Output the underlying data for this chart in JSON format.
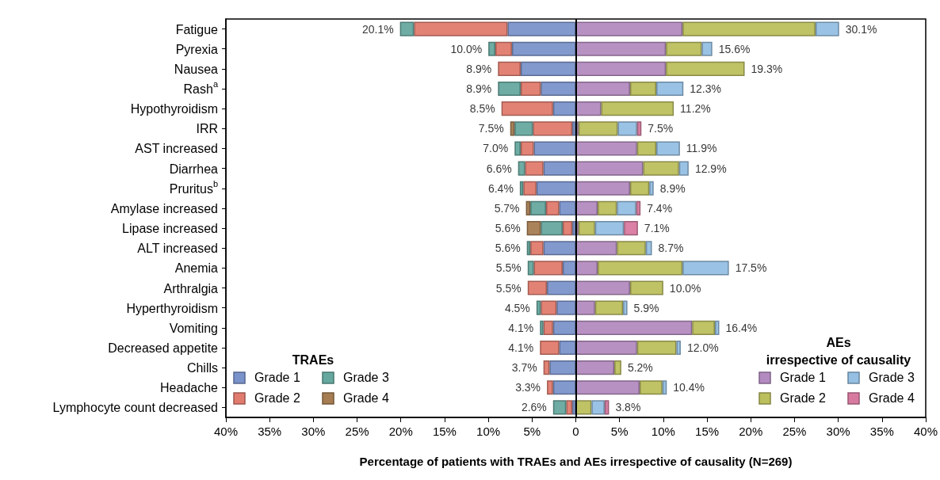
{
  "chart_data": {
    "type": "bar",
    "orientation": "horizontal",
    "stacked": true,
    "xlabel": "Percentage of patients with TRAEs and AEs irrespective of causality (N=269)",
    "legend_title": [
      "TRAEs",
      "AEs\nirrespective of causality"
    ],
    "legend": "bottom",
    "categories": [
      "Fatigue",
      "Pyrexia",
      "Nausea",
      "Rash$^{a}$",
      "Hypothyroidism",
      "IRR",
      "AST increased",
      "Diarrhea",
      "Pruritus$^{b}$",
      "Amylase increased",
      "Lipase increased",
      "ALT increased",
      "Anemia",
      "Arthralgia",
      "Hyperthyroidism",
      "Vomiting",
      "Decreased appetite",
      "Chills",
      "Headache",
      "Lymphocyte count decreased"
    ],
    "series": [
      {
        "name": "Grade 1",
        "color": "#7b93cb",
        "values": [
          -7.8,
          -7.3,
          -6.3,
          -4.0,
          -2.6,
          -0.4,
          -4.8,
          -3.7,
          -4.5,
          -1.9,
          -0.4,
          -3.7,
          -1.5,
          -3.3,
          -2.2,
          -2.6,
          -1.9,
          -3.0,
          -2.6,
          -0.4
        ]
      },
      {
        "name": "Grade 2",
        "color": "#e07b6e",
        "values": [
          -10.7,
          -1.9,
          -2.6,
          -2.3,
          -5.9,
          -4.5,
          -1.5,
          -2.1,
          -1.5,
          -1.5,
          -1.1,
          -1.5,
          -3.3,
          -2.2,
          -1.8,
          -1.1,
          -2.2,
          -0.7,
          -0.7,
          -0.7
        ]
      },
      {
        "name": "Grade 3",
        "color": "#66a89f",
        "values": [
          -1.6,
          -0.8,
          null,
          -2.6,
          null,
          -2.1,
          -0.7,
          -0.8,
          -0.4,
          -1.8,
          -2.5,
          -0.4,
          -0.7,
          null,
          -0.5,
          -0.4,
          null,
          null,
          null,
          -1.5
        ]
      },
      {
        "name": "Grade 4",
        "color": "#a67c52",
        "values": [
          null,
          null,
          null,
          null,
          null,
          -0.5,
          null,
          null,
          null,
          -0.5,
          -1.6,
          null,
          null,
          null,
          null,
          null,
          null,
          null,
          null,
          null
        ]
      },
      {
        "name": "Grade 1",
        "color": "#b48bc0",
        "values": [
          12.2,
          10.3,
          10.3,
          6.2,
          2.9,
          0.3,
          7.0,
          7.7,
          6.2,
          2.5,
          0.3,
          4.7,
          2.5,
          6.2,
          2.2,
          13.3,
          7.0,
          4.4,
          7.3,
          null
        ]
      },
      {
        "name": "Grade 2",
        "color": "#bcbf5d",
        "values": [
          15.2,
          4.1,
          9.0,
          3.0,
          8.3,
          4.5,
          2.2,
          4.1,
          2.2,
          2.2,
          1.9,
          3.3,
          9.7,
          3.8,
          3.2,
          2.6,
          4.5,
          0.8,
          2.6,
          1.8
        ]
      },
      {
        "name": "Grade 3",
        "color": "#95bfe3",
        "values": [
          2.7,
          1.2,
          null,
          3.1,
          null,
          2.2,
          2.7,
          1.1,
          0.5,
          2.2,
          3.3,
          0.7,
          5.3,
          null,
          0.5,
          0.5,
          0.5,
          null,
          0.5,
          1.5
        ]
      },
      {
        "name": "Grade 4",
        "color": "#d87aa0",
        "values": [
          null,
          null,
          null,
          null,
          null,
          0.5,
          null,
          null,
          null,
          0.5,
          1.6,
          null,
          null,
          null,
          null,
          null,
          null,
          null,
          null,
          0.5
        ]
      }
    ],
    "xlim": [
      -40,
      40
    ],
    "xticks": [
      {
        "value": -40,
        "label": "40%"
      },
      {
        "value": -35,
        "label": "35%"
      },
      {
        "value": -30,
        "label": "30%"
      },
      {
        "value": -25,
        "label": "25%"
      },
      {
        "value": -20,
        "label": "20%"
      },
      {
        "value": -15,
        "label": "15%"
      },
      {
        "value": -10,
        "label": "10%"
      },
      {
        "value": -5,
        "label": "5%"
      },
      0,
      {
        "value": 5,
        "label": "5%"
      },
      {
        "value": 10,
        "label": "10%"
      },
      {
        "value": 15,
        "label": "15%"
      },
      {
        "value": 20,
        "label": "20%"
      },
      {
        "value": 25,
        "label": "25%"
      },
      {
        "value": 30,
        "label": "30%"
      },
      {
        "value": 35,
        "label": "35%"
      },
      {
        "value": 40,
        "label": "40%"
      }
    ],
    "ref_lines": [
      {
        "axis": "x",
        "value": 0,
        "color": "#000000",
        "line_style": "solid"
      }
    ],
    "annotations": [
      {
        "text": "20.1%",
        "x": -20.1,
        "y": "Fatigue"
      },
      {
        "text": "30.1%",
        "x": 30.1,
        "y": "Fatigue"
      },
      {
        "text": "10.0%",
        "x": -10.0,
        "y": "Pyrexia"
      },
      {
        "text": "15.6%",
        "x": 15.6,
        "y": "Pyrexia"
      },
      {
        "text": "8.9%",
        "x": -8.9,
        "y": "Nausea"
      },
      {
        "text": "19.3%",
        "x": 19.3,
        "y": "Nausea"
      },
      {
        "text": "8.9%",
        "x": -8.9,
        "y": "Rash$^{a}$"
      },
      {
        "text": "12.3%",
        "x": 12.3,
        "y": "Rash$^{a}$"
      },
      {
        "text": "8.5%",
        "x": -8.5,
        "y": "Hypothyroidism"
      },
      {
        "text": "11.2%",
        "x": 11.2,
        "y": "Hypothyroidism"
      },
      {
        "text": "7.5%",
        "x": -7.5,
        "y": "IRR"
      },
      {
        "text": "7.5%",
        "x": 7.5,
        "y": "IRR"
      },
      {
        "text": "7.0%",
        "x": -7.0,
        "y": "AST increased"
      },
      {
        "text": "11.9%",
        "x": 11.9,
        "y": "AST increased"
      },
      {
        "text": "6.6%",
        "x": -6.6,
        "y": "Diarrhea"
      },
      {
        "text": "12.9%",
        "x": 12.9,
        "y": "Diarrhea"
      },
      {
        "text": "6.4%",
        "x": -6.4,
        "y": "Pruritus$^{b}$"
      },
      {
        "text": "8.9%",
        "x": 8.9,
        "y": "Pruritus$^{b}$"
      },
      {
        "text": "5.7%",
        "x": -5.7,
        "y": "Amylase increased"
      },
      {
        "text": "7.4%",
        "x": 7.4,
        "y": "Amylase increased"
      },
      {
        "text": "5.6%",
        "x": -5.6,
        "y": "Lipase increased"
      },
      {
        "text": "7.1%",
        "x": 7.1,
        "y": "Lipase increased"
      },
      {
        "text": "5.6%",
        "x": -5.6,
        "y": "ALT increased"
      },
      {
        "text": "8.7%",
        "x": 8.7,
        "y": "ALT increased"
      },
      {
        "text": "5.5%",
        "x": -5.5,
        "y": "Anemia"
      },
      {
        "text": "17.5%",
        "x": 17.5,
        "y": "Anemia"
      },
      {
        "text": "5.5%",
        "x": -5.5,
        "y": "Arthralgia"
      },
      {
        "text": "10.0%",
        "x": 10.0,
        "y": "Arthralgia"
      },
      {
        "text": "4.5%",
        "x": -4.5,
        "y": "Hyperthyroidism"
      },
      {
        "text": "5.9%",
        "x": 5.9,
        "y": "Hyperthyroidism"
      },
      {
        "text": "4.1%",
        "x": -4.1,
        "y": "Vomiting"
      },
      {
        "text": "16.4%",
        "x": 16.4,
        "y": "Vomiting"
      },
      {
        "text": "4.1%",
        "x": -4.1,
        "y": "Decreased appetite"
      },
      {
        "text": "12.0%",
        "x": 12.0,
        "y": "Decreased appetite"
      },
      {
        "text": "3.7%",
        "x": -3.7,
        "y": "Chills"
      },
      {
        "text": "5.2%",
        "x": 5.2,
        "y": "Chills"
      },
      {
        "text": "3.3%",
        "x": -3.3,
        "y": "Headache"
      },
      {
        "text": "10.4%",
        "x": 10.4,
        "y": "Headache"
      },
      {
        "text": "2.6%",
        "x": -2.6,
        "y": "Lymphocyte count decreased"
      },
      {
        "text": "3.8%",
        "x": 3.8,
        "y": "Lymphocyte count decreased"
      }
    ]
  }
}
